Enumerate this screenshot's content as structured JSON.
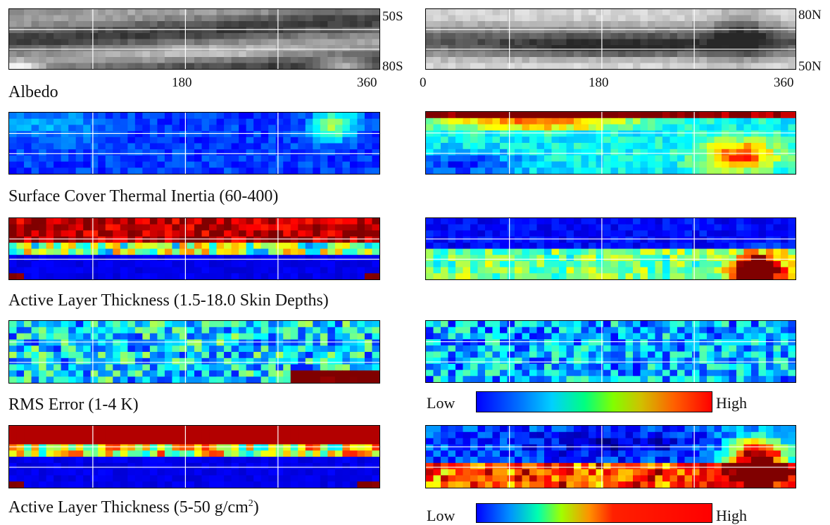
{
  "axes": {
    "south_lat_top": "50S",
    "south_lat_bottom": "80S",
    "north_lat_top": "80N",
    "north_lat_bottom": "50N",
    "lon_left_ticks": [
      "180",
      "360"
    ],
    "lon_right_ticks": [
      "0",
      "180",
      "360"
    ]
  },
  "rows": [
    {
      "label": "Albedo",
      "scheme": "gray",
      "south": "albedo_s",
      "north": "albedo_n"
    },
    {
      "label": "Surface Cover Thermal Inertia (60-400)",
      "scheme": "jet",
      "south": "ti_s",
      "north": "ti_n"
    },
    {
      "label": "Active Layer Thickness (1.5-18.0 Skin Depths)",
      "scheme": "jet",
      "south": "alt_s",
      "north": "alt_n"
    },
    {
      "label": "RMS Error (1-4 K)",
      "scheme": "jet",
      "south": "rms_s",
      "north": "rms_n"
    },
    {
      "label": "Active Layer Thickness (5-50 g/cm",
      "label_sup": "2",
      "label_end": ")",
      "scheme": "jet",
      "south": "mass_s",
      "north": "mass_n"
    }
  ],
  "colorbars": [
    {
      "low": "Low",
      "high": "High",
      "scheme": "jet"
    },
    {
      "low": "Low",
      "high": "High",
      "scheme": "jet-red"
    }
  ],
  "colors": {
    "low": "#0000ff",
    "mid": "#00ff60",
    "high": "#ff0000",
    "gridline": "#ffffff"
  }
}
